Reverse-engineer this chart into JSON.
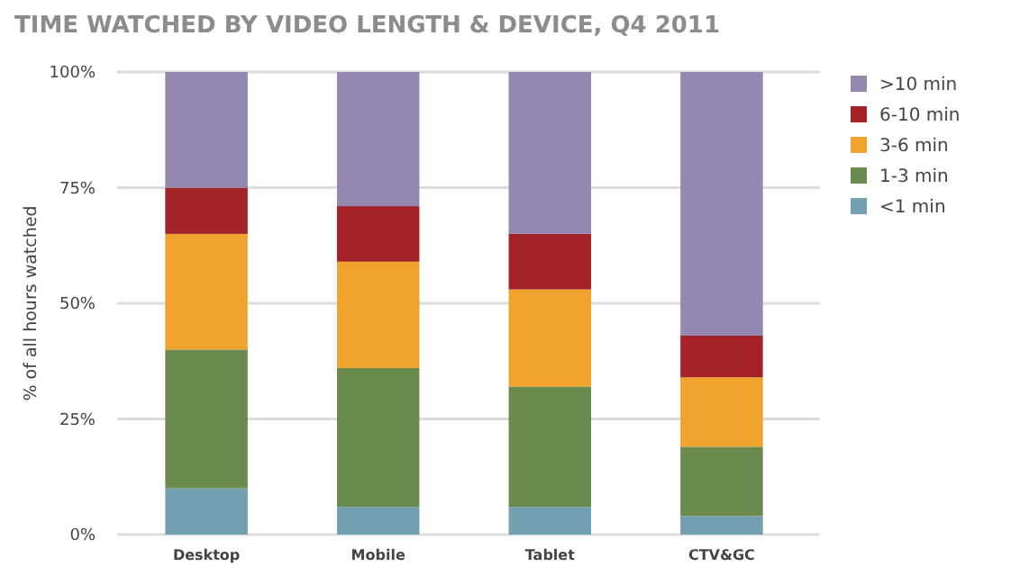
{
  "chart_data": {
    "type": "bar",
    "title": "TIME WATCHED BY VIDEO LENGTH & DEVICE, Q4 2011",
    "ylabel": "% of all hours watched",
    "categories": [
      "Desktop",
      "Mobile",
      "Tablet",
      "CTV&GC"
    ],
    "stacked": true,
    "series": [
      {
        "name": "<1 min",
        "color": "#72a0b0",
        "values": [
          10,
          6,
          6,
          4
        ]
      },
      {
        "name": "1-3 min",
        "color": "#6b8a4e",
        "values": [
          30,
          30,
          26,
          15
        ]
      },
      {
        "name": "3-6 min",
        "color": "#f0a32c",
        "values": [
          25,
          23,
          21,
          15
        ]
      },
      {
        "name": "6-10 min",
        "color": "#a32228",
        "values": [
          10,
          12,
          12,
          9
        ]
      },
      {
        "name": ">10 min",
        "color": "#9488b0",
        "values": [
          25,
          29,
          35,
          57
        ]
      }
    ],
    "ylim": [
      0,
      100
    ],
    "yticks": [
      {
        "value": 0,
        "label": "0%"
      },
      {
        "value": 25,
        "label": "25%"
      },
      {
        "value": 50,
        "label": "50%"
      },
      {
        "value": 75,
        "label": "75%"
      },
      {
        "value": 100,
        "label": "100%"
      }
    ],
    "grid": "y",
    "legend": "right"
  }
}
